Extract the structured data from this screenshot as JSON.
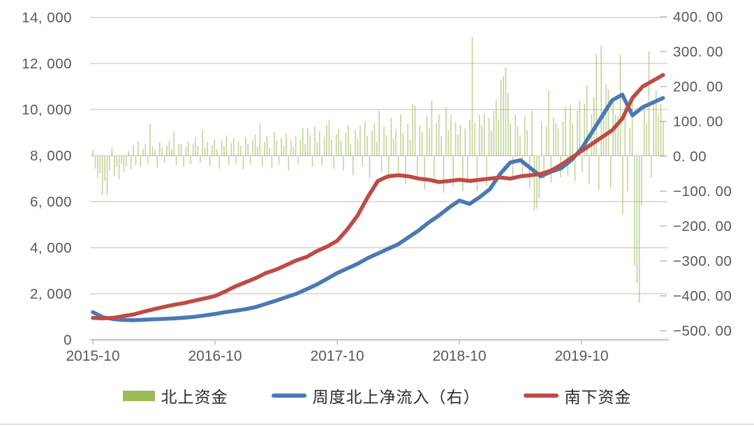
{
  "chart_data": {
    "type": "combo",
    "subtypes": [
      "bar",
      "line",
      "line"
    ],
    "title": "",
    "legend_position": "bottom",
    "grid": true,
    "x_axis": {
      "tick_labels": [
        "2015-10",
        "2016-10",
        "2017-10",
        "2018-10",
        "2019-10"
      ],
      "tick_positions_months": [
        0,
        12,
        24,
        36,
        48
      ],
      "start_month": "2015-10",
      "end_month": "2020-06"
    },
    "left_axis": {
      "min": 0,
      "max": 14000,
      "tick_values": [
        0,
        2000,
        4000,
        6000,
        8000,
        10000,
        12000,
        14000
      ],
      "tick_labels": [
        "0",
        "2, 000",
        "4, 000",
        "6, 000",
        "8, 000",
        "10, 000",
        "12, 000",
        "14, 000"
      ]
    },
    "right_axis": {
      "min": -500,
      "max": 400,
      "tick_values": [
        400,
        300,
        200,
        100,
        0,
        -100,
        -200,
        -300,
        -400,
        -500
      ],
      "tick_labels": [
        "400. 00",
        "300. 00",
        "200. 00",
        "100. 00",
        "0. 00",
        "−100. 00",
        "−200. 00",
        "−300. 00",
        "−400. 00",
        "−500. 00"
      ]
    },
    "style": {
      "grid_color": "#d9d9d9",
      "axis_color": "#c2c2c2",
      "tick_text_color": "#595959",
      "bar_color": "#9bbb59",
      "blue_line_color": "#4a79b5",
      "red_line_color": "#bf4b45"
    },
    "series": [
      {
        "name": "北上资金",
        "type": "bar",
        "axis": "right",
        "frequency": "weekly",
        "color": "#9bbb59",
        "values": [
          18,
          -35,
          -62,
          -48,
          -110,
          -70,
          -112,
          -40,
          26,
          -55,
          -30,
          -66,
          -22,
          -45,
          -28,
          15,
          -38,
          30,
          -25,
          42,
          -30,
          22,
          35,
          -20,
          92,
          28,
          18,
          -32,
          40,
          25,
          -18,
          30,
          45,
          20,
          70,
          -25,
          35,
          35,
          -30,
          28,
          42,
          -22,
          35,
          55,
          30,
          -18,
          75,
          25,
          40,
          -28,
          32,
          48,
          20,
          -35,
          45,
          28,
          60,
          -25,
          38,
          52,
          -20,
          42,
          30,
          -38,
          55,
          35,
          -22,
          48,
          62,
          28,
          95,
          -30,
          40,
          58,
          25,
          -35,
          70,
          45,
          -25,
          52,
          30,
          65,
          -40,
          45,
          28,
          58,
          -22,
          48,
          80,
          35,
          82,
          60,
          -30,
          85,
          40,
          72,
          -26,
          55,
          90,
          105,
          48,
          -35,
          62,
          78,
          45,
          -40,
          68,
          90,
          35,
          -55,
          75,
          50,
          88,
          -30,
          100,
          58,
          -62,
          72,
          95,
          40,
          130,
          -45,
          85,
          60,
          -70,
          110,
          52,
          78,
          -48,
          120,
          65,
          -80,
          92,
          48,
          150,
          145,
          -60,
          88,
          70,
          -95,
          115,
          82,
          160,
          -70,
          95,
          120,
          58,
          -105,
          140,
          75,
          118,
          -88,
          96,
          62,
          90,
          -100,
          80,
          -70,
          105,
          343,
          95,
          -100,
          118,
          90,
          120,
          -85,
          110,
          75,
          130,
          162,
          105,
          220,
          230,
          255,
          182,
          95,
          -60,
          120,
          85,
          60,
          -50,
          115,
          75,
          -90,
          130,
          -155,
          -150,
          -120,
          100,
          -65,
          85,
          188,
          -75,
          110,
          95,
          80,
          -60,
          100,
          140,
          -55,
          145,
          92,
          -70,
          130,
          160,
          -45,
          150,
          205,
          -80,
          120,
          170,
          293,
          -95,
          317,
          135,
          206,
          192,
          -90,
          160,
          120,
          115,
          291,
          -166,
          140,
          -100,
          80,
          175,
          -313,
          -364,
          -420,
          -142,
          150,
          95,
          301,
          -60,
          160,
          190,
          120,
          150,
          100
        ]
      },
      {
        "name": "周度北上净流入（右）",
        "type": "line",
        "axis": "left",
        "frequency": "monthly",
        "color": "#4a79b5",
        "values": [
          1200,
          980,
          900,
          860,
          850,
          870,
          890,
          910,
          930,
          960,
          1000,
          1060,
          1120,
          1200,
          1260,
          1330,
          1420,
          1560,
          1700,
          1850,
          2000,
          2200,
          2400,
          2650,
          2900,
          3100,
          3300,
          3550,
          3750,
          3950,
          4150,
          4450,
          4750,
          5100,
          5400,
          5750,
          6050,
          5900,
          6200,
          6550,
          7200,
          7700,
          7800,
          7450,
          7100,
          7300,
          7450,
          7800,
          8300,
          9000,
          9700,
          10400,
          10650,
          9750,
          10100,
          10300,
          10500
        ]
      },
      {
        "name": "南下资金",
        "type": "line",
        "axis": "left",
        "frequency": "monthly",
        "color": "#bf4b45",
        "values": [
          950,
          930,
          950,
          1030,
          1100,
          1220,
          1330,
          1430,
          1520,
          1600,
          1700,
          1800,
          1900,
          2100,
          2320,
          2500,
          2680,
          2900,
          3050,
          3250,
          3450,
          3600,
          3850,
          4050,
          4300,
          4800,
          5400,
          6200,
          6900,
          7100,
          7150,
          7100,
          7000,
          6950,
          6850,
          6900,
          6950,
          6900,
          6950,
          7000,
          7050,
          7000,
          7100,
          7150,
          7200,
          7350,
          7600,
          7900,
          8200,
          8500,
          8800,
          9100,
          9600,
          10500,
          11000,
          11250,
          11500
        ]
      }
    ]
  },
  "legend": {
    "items": [
      {
        "label": "北上资金",
        "swatch": "bar-swatch",
        "color": "#9bbb59"
      },
      {
        "label": "周度北上净流入（右）",
        "swatch": "line-swatch",
        "color": "#4a79b5"
      },
      {
        "label": "南下资金",
        "swatch": "line-swatch",
        "color": "#bf4b45"
      }
    ]
  }
}
